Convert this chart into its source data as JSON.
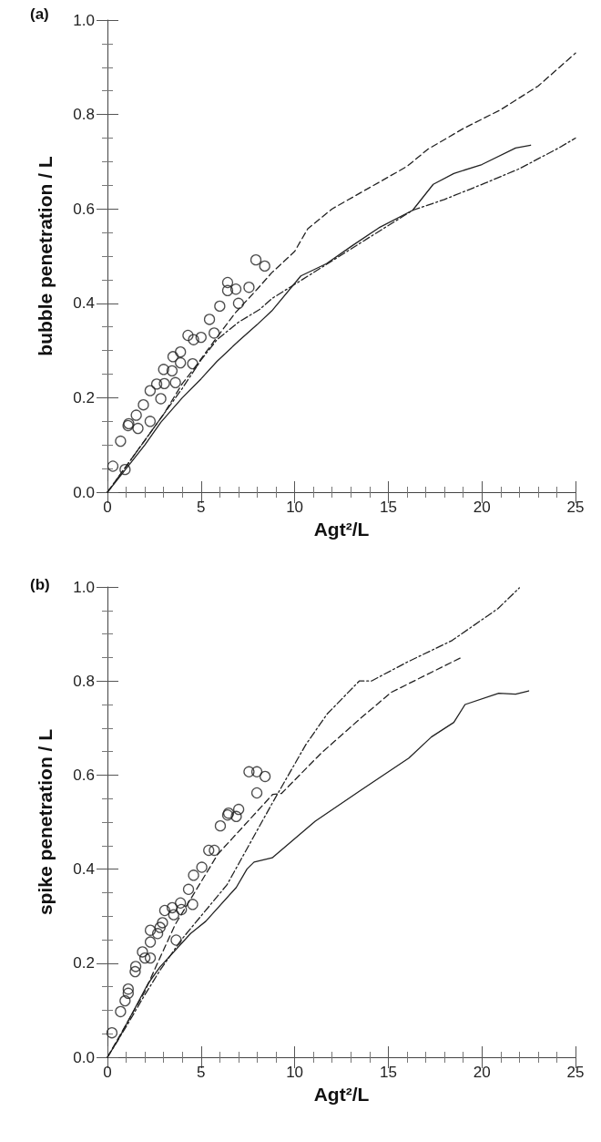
{
  "chart_data": [
    {
      "type": "scatter",
      "title": "(a)",
      "xlabel": "Agt²/L",
      "ylabel": "bubble penetration / L",
      "xlim": [
        0,
        25
      ],
      "ylim": [
        0,
        1.0
      ],
      "xticks": [
        0,
        5,
        10,
        15,
        20,
        25
      ],
      "yticks": [
        {
          "value": 0,
          "label": "0.0"
        },
        {
          "value": 0.2,
          "label": "0.2"
        },
        {
          "value": 0.4,
          "label": "0.4"
        },
        {
          "value": 0.6,
          "label": "0.6"
        },
        {
          "value": 0.8,
          "label": "0.8"
        },
        {
          "value": 1.0,
          "label": "1.0"
        }
      ],
      "grid": false,
      "series": [
        {
          "marker": "circle",
          "color": "#222222",
          "x": [
            0.29,
            0.94,
            0.7,
            1.1,
            1.14,
            1.63,
            1.54,
            1.92,
            2.28,
            2.28,
            2.85,
            2.63,
            3.04,
            3.63,
            3.0,
            3.45,
            3.5,
            3.9,
            3.9,
            4.55,
            4.3,
            4.6,
            5.0,
            5.45,
            5.7,
            6.0,
            6.42,
            6.42,
            6.86,
            7.0,
            7.56,
            7.93,
            8.4
          ],
          "values": [
            0.055,
            0.048,
            0.108,
            0.141,
            0.145,
            0.135,
            0.163,
            0.185,
            0.15,
            0.215,
            0.198,
            0.229,
            0.23,
            0.232,
            0.26,
            0.257,
            0.287,
            0.297,
            0.274,
            0.272,
            0.332,
            0.323,
            0.328,
            0.366,
            0.337,
            0.394,
            0.444,
            0.427,
            0.43,
            0.4,
            0.434,
            0.492,
            0.479
          ]
        },
        {
          "type": "line",
          "line_style": "solid",
          "color": "#222222",
          "x": [
            0,
            1,
            2,
            2.85,
            4,
            5,
            5.85,
            7,
            8,
            8.78,
            10.33,
            11.7,
            13,
            14.5,
            16.3,
            17.4,
            18.5,
            20,
            21.8,
            22.6
          ],
          "values": [
            0,
            0.05,
            0.1,
            0.148,
            0.2,
            0.24,
            0.277,
            0.32,
            0.355,
            0.384,
            0.458,
            0.484,
            0.52,
            0.56,
            0.597,
            0.652,
            0.675,
            0.694,
            0.729,
            0.735
          ]
        },
        {
          "type": "line",
          "line_style": "dashed",
          "color": "#222222",
          "x": [
            0,
            1,
            2,
            3,
            4,
            4.55,
            5.7,
            6.83,
            8,
            8.78,
            10,
            10.7,
            12,
            14,
            16,
            17.1,
            19,
            21,
            23,
            25
          ],
          "values": [
            0,
            0.055,
            0.11,
            0.165,
            0.23,
            0.258,
            0.32,
            0.38,
            0.43,
            0.465,
            0.51,
            0.558,
            0.6,
            0.645,
            0.69,
            0.726,
            0.77,
            0.81,
            0.86,
            0.93
          ]
        },
        {
          "type": "line",
          "line_style": "dashdot",
          "color": "#222222",
          "x": [
            0,
            1,
            2,
            3,
            4,
            5,
            5.85,
            7,
            8.13,
            8.78,
            10.4,
            12,
            14,
            16.3,
            18,
            20.2,
            22,
            24.1,
            25
          ],
          "values": [
            0,
            0.055,
            0.11,
            0.165,
            0.22,
            0.28,
            0.323,
            0.36,
            0.387,
            0.41,
            0.45,
            0.49,
            0.54,
            0.597,
            0.62,
            0.655,
            0.685,
            0.729,
            0.75
          ]
        }
      ]
    },
    {
      "type": "scatter",
      "title": "(b)",
      "xlabel": "Agt²/L",
      "ylabel": "spike penetration / L",
      "xlim": [
        0,
        25
      ],
      "ylim": [
        0,
        1.0
      ],
      "xticks": [
        0,
        5,
        10,
        15,
        20,
        25
      ],
      "yticks": [
        {
          "value": 0,
          "label": "0.0"
        },
        {
          "value": 0.2,
          "label": "0.2"
        },
        {
          "value": 0.4,
          "label": "0.4"
        },
        {
          "value": 0.6,
          "label": "0.6"
        },
        {
          "value": 0.8,
          "label": "0.8"
        },
        {
          "value": 1.0,
          "label": "1.0"
        }
      ],
      "grid": false,
      "series": [
        {
          "marker": "circle",
          "color": "#222222",
          "x": [
            0.24,
            0.7,
            0.94,
            1.11,
            1.11,
            1.48,
            1.51,
            1.87,
            2.0,
            2.29,
            2.29,
            2.29,
            2.68,
            2.81,
            2.94,
            3.06,
            3.46,
            3.54,
            3.67,
            3.9,
            3.95,
            4.55,
            4.33,
            4.6,
            5.04,
            5.41,
            5.71,
            6.03,
            6.42,
            6.47,
            6.88,
            7.01,
            7.56,
            7.98,
            8.42,
            7.98
          ],
          "values": [
            0.052,
            0.097,
            0.12,
            0.136,
            0.145,
            0.182,
            0.193,
            0.224,
            0.211,
            0.211,
            0.245,
            0.27,
            0.263,
            0.276,
            0.286,
            0.312,
            0.318,
            0.303,
            0.249,
            0.328,
            0.314,
            0.325,
            0.357,
            0.387,
            0.404,
            0.44,
            0.44,
            0.492,
            0.515,
            0.519,
            0.512,
            0.527,
            0.607,
            0.607,
            0.597,
            0.562
          ]
        },
        {
          "type": "line",
          "line_style": "solid",
          "color": "#222222",
          "x": [
            0,
            0.54,
            2.16,
            2.81,
            4.44,
            5.25,
            6.88,
            7.45,
            7.83,
            8.8,
            11.1,
            13.5,
            16.1,
            17.3,
            18.5,
            19.1,
            20.9,
            21.8,
            22.5
          ],
          "values": [
            0,
            0.035,
            0.156,
            0.192,
            0.263,
            0.289,
            0.361,
            0.4,
            0.415,
            0.424,
            0.502,
            0.567,
            0.636,
            0.681,
            0.712,
            0.75,
            0.774,
            0.772,
            0.779
          ]
        },
        {
          "type": "line",
          "line_style": "dashed",
          "color": "#222222",
          "x": [
            0,
            1,
            2.0,
            2.65,
            3.63,
            5.9,
            8.83,
            9.3,
            11.4,
            13.5,
            15.16,
            18.9
          ],
          "values": [
            0,
            0.07,
            0.14,
            0.198,
            0.283,
            0.432,
            0.559,
            0.561,
            0.646,
            0.72,
            0.776,
            0.85
          ]
        },
        {
          "type": "line",
          "line_style": "dashdot",
          "color": "#222222",
          "x": [
            0,
            1,
            2.0,
            2.81,
            3.95,
            6.39,
            8.8,
            10.6,
            11.74,
            13.45,
            14.1,
            16.0,
            18.4,
            20.86,
            22.0
          ],
          "values": [
            0,
            0.065,
            0.133,
            0.185,
            0.25,
            0.367,
            0.54,
            0.665,
            0.73,
            0.8,
            0.8,
            0.84,
            0.886,
            0.954,
            0.998
          ]
        }
      ]
    }
  ]
}
